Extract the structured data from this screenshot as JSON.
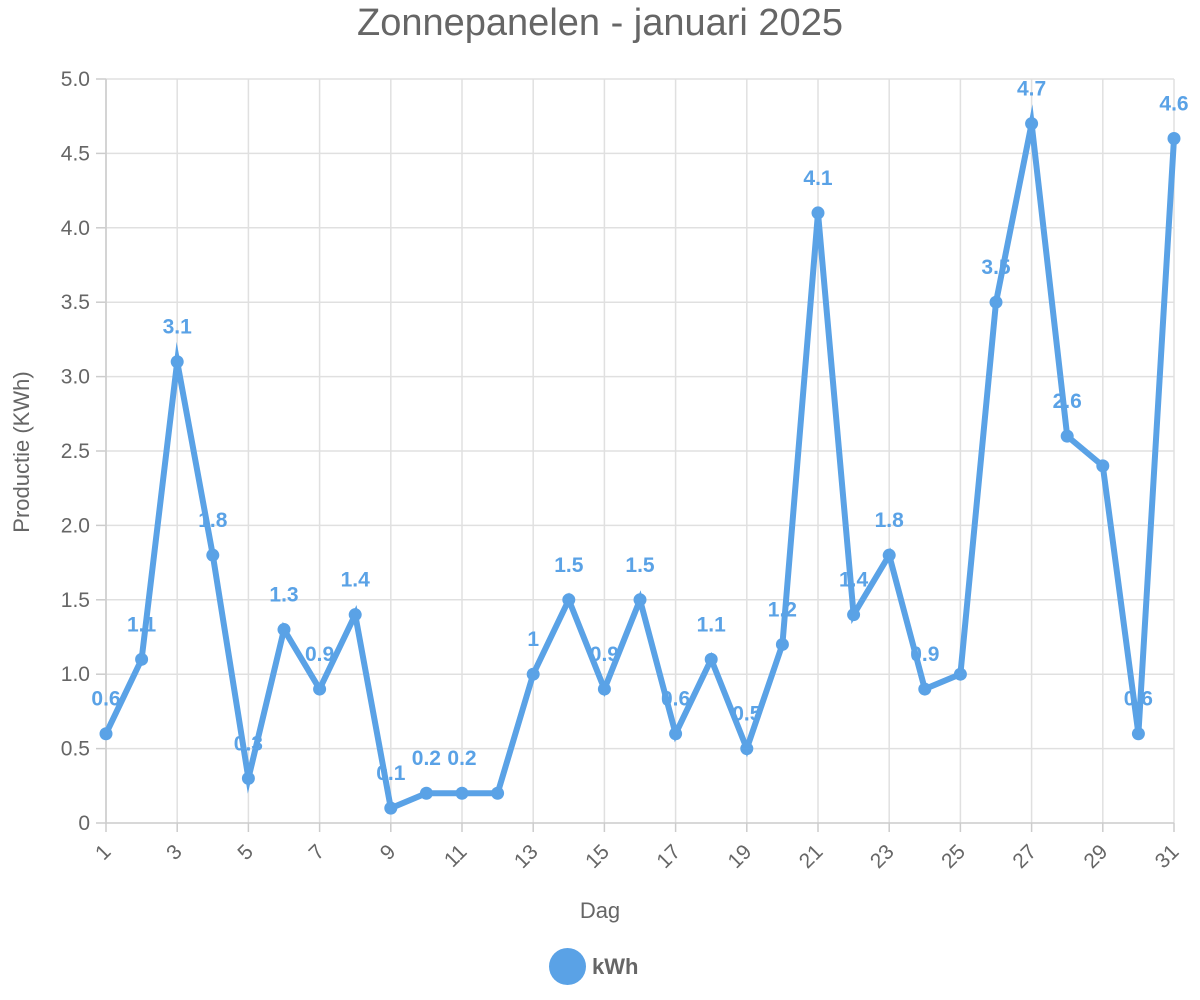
{
  "chart_data": {
    "type": "line",
    "title": "Zonnepanelen - januari 2025",
    "xlabel": "Dag",
    "ylabel": "Productie (KWh)",
    "ylim": [
      0,
      5
    ],
    "y_ticks": [
      "0",
      "0.5",
      "1.0",
      "1.5",
      "2.0",
      "2.5",
      "3.0",
      "3.5",
      "4.0",
      "4.5",
      "5.0"
    ],
    "x": [
      1,
      2,
      3,
      4,
      5,
      6,
      7,
      8,
      9,
      10,
      11,
      12,
      13,
      14,
      15,
      16,
      17,
      18,
      19,
      20,
      21,
      22,
      23,
      24,
      25,
      26,
      27,
      28,
      29,
      30,
      31
    ],
    "x_tick_labels": [
      "1",
      "3",
      "5",
      "7",
      "9",
      "11",
      "13",
      "15",
      "17",
      "19",
      "21",
      "23",
      "25",
      "27",
      "29",
      "31"
    ],
    "series": [
      {
        "name": "kWh",
        "color": "#5aa2e6",
        "values": [
          0.6,
          1.1,
          3.1,
          1.8,
          0.3,
          1.3,
          0.9,
          1.4,
          0.1,
          0.2,
          0.2,
          0.2,
          1.0,
          1.5,
          0.9,
          1.5,
          0.6,
          1.1,
          0.5,
          1.2,
          4.1,
          1.4,
          1.8,
          0.9,
          1.0,
          3.5,
          4.7,
          2.6,
          2.4,
          0.6,
          4.6
        ],
        "data_labels": [
          "0.6",
          "1.1",
          "3.1",
          "1.8",
          "0.3",
          "1.3",
          "0.9",
          "1.4",
          "0.1",
          "0.2",
          "0.2",
          "",
          "1",
          "1.5",
          "0.9",
          "1.5",
          "0.6",
          "1.1",
          "0.5",
          "1.2",
          "4.1",
          "1.4",
          "1.8",
          "0.9",
          "",
          "3.5",
          "4.7",
          "2.6",
          "",
          "0.6",
          "4.6"
        ]
      }
    ],
    "grid": true,
    "legend_position": "bottom-center"
  }
}
